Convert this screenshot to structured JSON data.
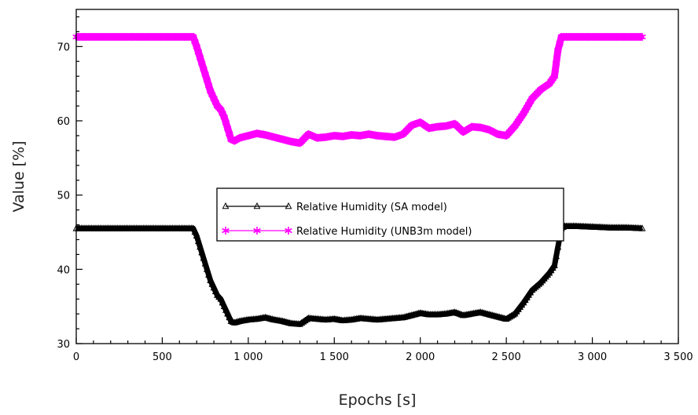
{
  "chart_data": {
    "type": "line",
    "xlabel": "Epochs [s]",
    "ylabel": "Value [%]",
    "xlim": [
      0,
      3500
    ],
    "ylim": [
      30,
      75
    ],
    "x_ticks": [
      0,
      500,
      1000,
      1500,
      2000,
      2500,
      3000,
      3500
    ],
    "x_tick_labels": [
      "0",
      "500",
      "1 000",
      "1 500",
      "2 000",
      "2 500",
      "3 000",
      "3 500"
    ],
    "y_ticks": [
      30,
      40,
      50,
      60,
      70
    ],
    "y_tick_labels": [
      "30",
      "40",
      "50",
      "60",
      "70"
    ],
    "grid": false,
    "legend_position": "center",
    "series": [
      {
        "name": "Relative Humidity (SA model)",
        "color": "#000000",
        "marker": "triangle-up",
        "x": [
          0,
          100,
          200,
          300,
          400,
          500,
          600,
          680,
          700,
          720,
          740,
          760,
          780,
          800,
          820,
          840,
          860,
          880,
          900,
          920,
          950,
          1000,
          1050,
          1100,
          1150,
          1200,
          1250,
          1300,
          1350,
          1400,
          1450,
          1500,
          1550,
          1600,
          1650,
          1700,
          1750,
          1800,
          1850,
          1900,
          1950,
          2000,
          2050,
          2100,
          2150,
          2200,
          2250,
          2300,
          2350,
          2400,
          2450,
          2500,
          2550,
          2600,
          2650,
          2700,
          2750,
          2780,
          2800,
          2820,
          2840,
          2900,
          3000,
          3100,
          3200,
          3290
        ],
        "values": [
          45.5,
          45.5,
          45.5,
          45.5,
          45.5,
          45.5,
          45.5,
          45.5,
          44.5,
          43,
          41.5,
          40,
          38.5,
          37.5,
          36.5,
          36,
          35,
          34,
          33,
          32.8,
          33,
          33.2,
          33.3,
          33.5,
          33.2,
          33,
          32.7,
          32.6,
          33.4,
          33.3,
          33.2,
          33.3,
          33.1,
          33.2,
          33.4,
          33.3,
          33.2,
          33.3,
          33.4,
          33.5,
          33.8,
          34.1,
          33.9,
          33.9,
          34,
          34.2,
          33.8,
          34,
          34.2,
          33.9,
          33.6,
          33.3,
          34,
          35.5,
          37.2,
          38.2,
          39.5,
          40.5,
          43,
          45.5,
          45.8,
          45.8,
          45.7,
          45.6,
          45.6,
          45.5
        ]
      },
      {
        "name": "Relative Humidity (UNB3m model)",
        "color": "#ff00ff",
        "marker": "asterisk",
        "x": [
          0,
          100,
          200,
          300,
          400,
          500,
          600,
          680,
          700,
          720,
          740,
          760,
          780,
          800,
          820,
          840,
          860,
          880,
          900,
          920,
          950,
          1000,
          1050,
          1100,
          1150,
          1200,
          1250,
          1300,
          1350,
          1400,
          1450,
          1500,
          1550,
          1600,
          1650,
          1700,
          1750,
          1800,
          1850,
          1900,
          1950,
          2000,
          2050,
          2100,
          2150,
          2200,
          2250,
          2300,
          2350,
          2400,
          2450,
          2500,
          2550,
          2600,
          2650,
          2700,
          2750,
          2780,
          2800,
          2820,
          2840,
          2900,
          3000,
          3100,
          3200,
          3290
        ],
        "values": [
          71.3,
          71.3,
          71.3,
          71.3,
          71.3,
          71.3,
          71.3,
          71.3,
          70,
          68.5,
          67,
          65.5,
          64,
          63,
          62,
          61.5,
          60.5,
          59,
          57.5,
          57.3,
          57.7,
          58,
          58.3,
          58.1,
          57.8,
          57.5,
          57.2,
          57,
          58.2,
          57.7,
          57.8,
          58,
          57.9,
          58.1,
          58,
          58.2,
          58,
          57.9,
          57.8,
          58.2,
          59.4,
          59.8,
          59,
          59.2,
          59.3,
          59.6,
          58.5,
          59.2,
          59.1,
          58.8,
          58.2,
          58,
          59.3,
          61,
          63,
          64.2,
          65,
          66,
          69.5,
          71.3,
          71.3,
          71.3,
          71.3,
          71.3,
          71.3,
          71.3
        ]
      }
    ]
  }
}
